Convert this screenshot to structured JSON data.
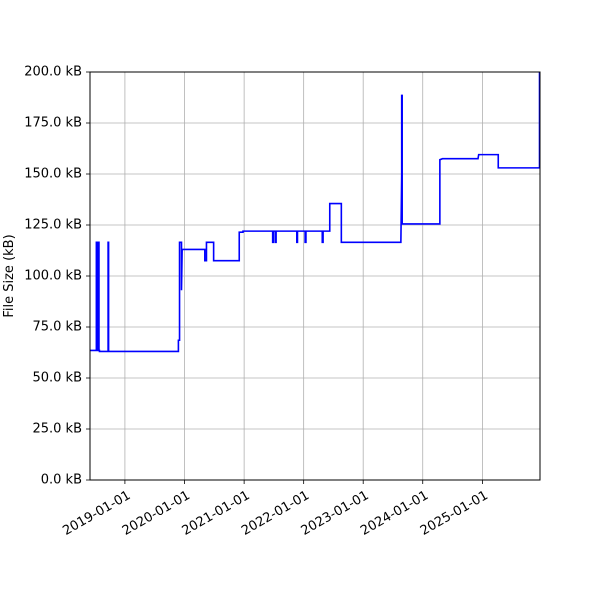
{
  "chart_data": {
    "type": "line",
    "title": "",
    "xlabel": "",
    "ylabel": "File Size (kB)",
    "grid": true,
    "legend": "none",
    "line_color": "#0000ff",
    "xlim": [
      "2018-06-01",
      "2025-12-20"
    ],
    "ylim": [
      0,
      200
    ],
    "x_ticks": [
      "2019-01-01",
      "2020-01-01",
      "2021-01-01",
      "2022-01-01",
      "2023-01-01",
      "2024-01-01",
      "2025-01-01"
    ],
    "y_ticks": [
      {
        "value": 0,
        "label": "0.0 kB"
      },
      {
        "value": 25,
        "label": "25.0 kB"
      },
      {
        "value": 50,
        "label": "50.0 kB"
      },
      {
        "value": 75,
        "label": "75.0 kB"
      },
      {
        "value": 100,
        "label": "100.0 kB"
      },
      {
        "value": 125,
        "label": "125.0 kB"
      },
      {
        "value": 150,
        "label": "150.0 kB"
      },
      {
        "value": 175,
        "label": "175.0 kB"
      },
      {
        "value": 200,
        "label": "200.0 kB"
      }
    ],
    "series": [
      {
        "x": [
          "2018-06-01",
          "2018-07-10",
          "2018-07-10",
          "2018-07-12",
          "2018-07-12",
          "2018-07-16",
          "2018-07-16",
          "2018-07-19",
          "2018-07-19",
          "2018-07-22",
          "2018-07-22",
          "2018-07-26",
          "2018-07-26",
          "2018-07-29",
          "2018-07-29",
          "2018-09-20",
          "2018-09-20",
          "2018-09-23",
          "2018-09-23",
          "2019-11-25",
          "2019-11-25",
          "2019-12-02",
          "2019-12-02",
          "2019-12-14",
          "2019-12-14",
          "2019-12-18",
          "2019-12-20",
          "2019-12-22",
          "2019-12-22",
          "2020-05-05",
          "2020-05-05",
          "2020-05-15",
          "2020-05-15",
          "2020-06-28",
          "2020-06-28",
          "2020-07-02",
          "2020-07-02",
          "2020-12-02",
          "2020-12-02",
          "2020-12-25",
          "2020-12-25",
          "2021-06-25",
          "2021-06-25",
          "2021-06-30",
          "2021-06-30",
          "2021-07-12",
          "2021-07-12",
          "2021-07-16",
          "2021-07-16",
          "2021-11-20",
          "2021-11-20",
          "2021-11-24",
          "2021-11-24",
          "2022-01-10",
          "2022-01-10",
          "2022-01-15",
          "2022-01-15",
          "2022-04-25",
          "2022-04-25",
          "2022-04-30",
          "2022-04-30",
          "2022-06-10",
          "2022-06-10",
          "2022-08-20",
          "2022-08-20",
          "2023-08-20",
          "2023-08-25",
          "2023-08-25",
          "2023-08-28",
          "2023-08-28",
          "2023-08-30",
          "2023-08-30",
          "2023-09-02",
          "2023-09-02",
          "2023-11-15",
          "2023-11-15",
          "2023-11-20",
          "2023-11-20",
          "2024-01-08",
          "2024-01-08",
          "2024-02-12",
          "2024-02-12",
          "2024-04-15",
          "2024-04-15",
          "2024-05-01",
          "2024-05-01",
          "2024-05-05",
          "2024-05-05",
          "2024-05-10",
          "2024-05-10",
          "2024-05-15",
          "2024-05-15",
          "2024-05-20",
          "2024-05-20",
          "2024-05-25",
          "2024-05-25",
          "2024-06-05",
          "2024-06-05",
          "2024-06-25",
          "2024-06-25",
          "2024-07-20",
          "2024-07-20",
          "2024-08-10",
          "2024-08-10",
          "2024-09-15",
          "2024-09-15",
          "2024-10-18",
          "2024-10-18",
          "2024-11-10",
          "2024-11-10",
          "2024-11-20",
          "2024-11-20",
          "2024-12-03",
          "2024-12-03",
          "2024-12-05",
          "2024-12-05",
          "2024-12-09",
          "2024-12-09",
          "2024-12-20",
          "2024-12-20",
          "2025-04-08",
          "2025-04-08",
          "2025-12-17",
          "2025-12-17"
        ],
        "y": [
          63.5,
          63.5,
          116.5,
          116.5,
          63.5,
          63.5,
          116.5,
          116.5,
          63.5,
          63.5,
          116.5,
          116.5,
          63.5,
          63.5,
          63.0,
          63.0,
          116.5,
          116.5,
          63.0,
          63.0,
          68.5,
          68.5,
          116.5,
          116.5,
          93.0,
          113.0,
          113.0,
          113.0,
          113.0,
          113.0,
          107.5,
          107.5,
          116.5,
          116.5,
          107.5,
          107.5,
          107.5,
          107.5,
          121.5,
          121.5,
          122.0,
          122.0,
          116.5,
          116.5,
          122.0,
          122.0,
          116.5,
          116.5,
          122.0,
          122.0,
          116.5,
          116.5,
          122.0,
          122.0,
          116.5,
          116.5,
          122.0,
          122.0,
          116.5,
          116.5,
          122.0,
          122.0,
          135.5,
          135.5,
          116.5,
          116.5,
          150.0,
          188.5,
          188.5,
          125.5,
          125.5,
          125.5,
          125.5,
          125.5,
          125.5,
          125.5,
          125.5,
          125.5,
          125.5,
          125.5,
          125.5,
          125.5,
          125.5,
          157.0,
          157.5,
          157.5,
          157.5,
          157.5,
          157.5,
          157.5,
          157.5,
          157.5,
          157.5,
          157.5,
          157.5,
          157.5,
          157.5,
          157.5,
          157.5,
          157.5,
          157.5,
          157.5,
          157.5,
          157.5,
          157.5,
          157.5,
          157.5,
          157.5,
          157.5,
          157.5,
          157.5,
          157.5,
          157.5,
          157.5,
          157.5,
          157.5,
          159.5,
          159.5,
          159.5,
          159.5,
          159.5,
          153.0,
          153.0,
          200.0
        ]
      }
    ]
  }
}
